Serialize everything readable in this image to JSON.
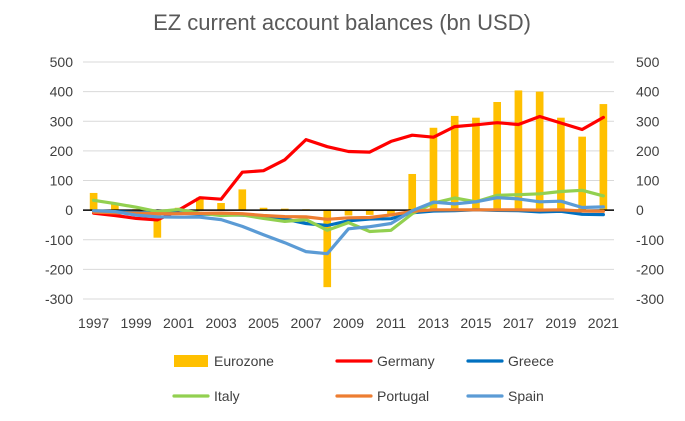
{
  "chart_data": {
    "type": "bar+line",
    "title": "EZ current account balances (bn USD)",
    "xlabel": "",
    "ylabel": "",
    "ylim": [
      -300,
      500
    ],
    "y_ticks": [
      500,
      400,
      300,
      200,
      100,
      0,
      -100,
      -200,
      -300
    ],
    "y_tick_labels": [
      "500",
      "400",
      "300",
      "200",
      "100",
      "0",
      "-100",
      "-200",
      "-300"
    ],
    "categories": [
      "1997",
      "1998",
      "1999",
      "2000",
      "2001",
      "2002",
      "2003",
      "2004",
      "2005",
      "2006",
      "2007",
      "2008",
      "2009",
      "2010",
      "2011",
      "2012",
      "2013",
      "2014",
      "2015",
      "2016",
      "2017",
      "2018",
      "2019",
      "2020",
      "2021"
    ],
    "x_tick_labels": [
      "1997",
      "1999",
      "2001",
      "2003",
      "2005",
      "2007",
      "2009",
      "2011",
      "2013",
      "2015",
      "2017",
      "2019",
      "2021"
    ],
    "grid": true,
    "legend_position": "bottom",
    "bar_series": {
      "name": "Eurozone",
      "color": "#FFC000",
      "values": [
        58,
        20,
        3,
        -93,
        8,
        42,
        24,
        70,
        8,
        5,
        3,
        -260,
        -18,
        -16,
        -15,
        122,
        278,
        318,
        312,
        365,
        404,
        400,
        312,
        248,
        358
      ]
    },
    "series": [
      {
        "name": "Eurozone",
        "color": "#FFC000",
        "kind": "bar"
      },
      {
        "name": "Germany",
        "color": "#FF0000",
        "kind": "line",
        "values": [
          -10,
          -18,
          -28,
          -33,
          0,
          42,
          37,
          128,
          133,
          170,
          238,
          214,
          198,
          196,
          232,
          253,
          246,
          282,
          288,
          295,
          289,
          316,
          294,
          272,
          313
        ]
      },
      {
        "name": "Greece",
        "color": "#0070C0",
        "kind": "line",
        "values": [
          -5,
          -5,
          -8,
          -10,
          -10,
          -13,
          -15,
          -17,
          -20,
          -30,
          -45,
          -52,
          -36,
          -30,
          -29,
          -9,
          -3,
          -2,
          1,
          -1,
          -2,
          -6,
          -4,
          -14,
          -15
        ]
      },
      {
        "name": "Italy",
        "color": "#92D050",
        "kind": "line",
        "values": [
          33,
          22,
          10,
          -5,
          2,
          -10,
          -18,
          -16,
          -28,
          -38,
          -32,
          -68,
          -42,
          -72,
          -68,
          -12,
          24,
          41,
          28,
          50,
          52,
          55,
          63,
          67,
          48
        ]
      },
      {
        "name": "Portugal",
        "color": "#ED7D31",
        "kind": "line",
        "values": [
          -7,
          -9,
          -10,
          -12,
          -12,
          -11,
          -10,
          -12,
          -18,
          -22,
          -23,
          -31,
          -26,
          -25,
          -16,
          -4,
          1,
          1,
          1,
          1,
          1,
          0,
          1,
          -3,
          -4
        ]
      },
      {
        "name": "Spain",
        "color": "#5B9BD5",
        "kind": "line",
        "values": [
          -2,
          -5,
          -17,
          -23,
          -24,
          -24,
          -32,
          -55,
          -83,
          -110,
          -140,
          -147,
          -63,
          -56,
          -45,
          -2,
          27,
          21,
          28,
          42,
          38,
          28,
          30,
          9,
          11
        ]
      }
    ]
  }
}
